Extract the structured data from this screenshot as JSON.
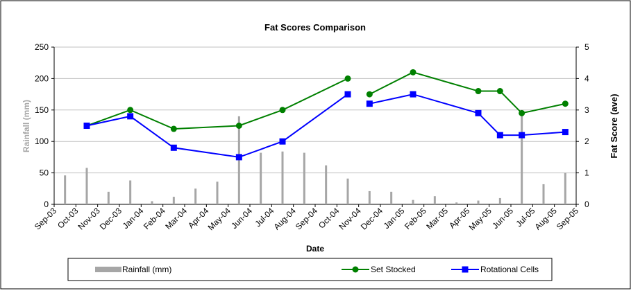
{
  "chart_data": {
    "type": "bar-line",
    "title": "Fat Scores Comparison",
    "x_label": "Date",
    "y_label": "Rainfall (mm)",
    "y2_label": "Fat Score (ave)",
    "categories": [
      "Sep-03",
      "Oct-03",
      "Nov-03",
      "Dec-03",
      "Jan-04",
      "Feb-04",
      "Mar-04",
      "Apr-04",
      "May-04",
      "Jun-04",
      "Jul-04",
      "Aug-04",
      "Sep-04",
      "Oct-04",
      "Nov-04",
      "Dec-04",
      "Jan-05",
      "Feb-05",
      "Mar-05",
      "Apr-05",
      "May-05",
      "Jun-05",
      "Jul-05",
      "Aug-05",
      "Sep-05"
    ],
    "ylim": [
      0,
      250
    ],
    "yticks": [
      0,
      50,
      100,
      150,
      200,
      250
    ],
    "y2lim": [
      0,
      5
    ],
    "y2ticks": [
      0,
      1,
      2,
      3,
      4,
      5
    ],
    "bars": {
      "name": "Rainfall (mm)",
      "color": "#a6a6a6",
      "values": [
        46,
        58,
        20,
        38,
        5,
        12,
        25,
        36,
        140,
        82,
        84,
        82,
        62,
        41,
        21,
        20,
        7,
        13,
        3,
        6,
        10,
        145,
        32,
        50
      ]
    },
    "series": [
      {
        "name": "Set Stocked",
        "color": "#008000",
        "axis": "y2",
        "x": [
          "Oct-03",
          "Dec-03",
          "Feb-04",
          "May-04",
          "Jul-04",
          "Oct-04",
          null,
          "Nov-04",
          "Jan-05",
          "Apr-05",
          "May-05",
          "Jun-05",
          "Aug-05"
        ],
        "values": [
          2.5,
          3.0,
          2.4,
          2.5,
          3.0,
          4.0,
          null,
          3.5,
          4.2,
          3.6,
          3.6,
          2.9,
          3.2
        ]
      },
      {
        "name": "Rotational Cells",
        "color": "#0000ff",
        "axis": "y2",
        "x": [
          "Oct-03",
          "Dec-03",
          "Feb-04",
          "May-04",
          "Jul-04",
          "Oct-04",
          null,
          "Nov-04",
          "Jan-05",
          "Apr-05",
          "May-05",
          "Jun-05",
          "Aug-05"
        ],
        "values": [
          2.5,
          2.8,
          1.8,
          1.5,
          2.0,
          3.5,
          null,
          3.2,
          3.5,
          2.9,
          2.2,
          2.2,
          2.3
        ]
      }
    ]
  }
}
